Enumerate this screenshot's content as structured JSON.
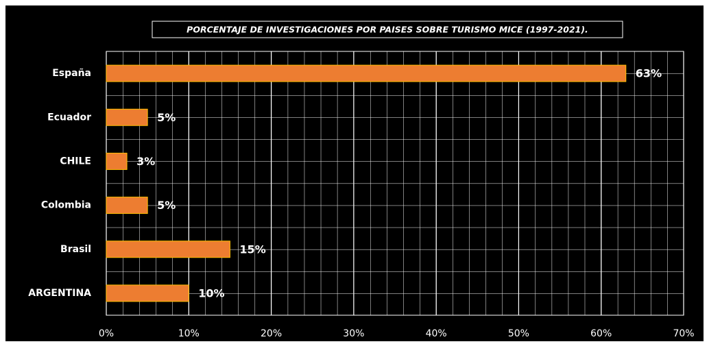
{
  "chart_data": {
    "type": "hbar",
    "title": "PORCENTAJE DE INVESTIGACIONES POR PAISES SOBRE TURISMO MICE (1997-2021).",
    "categories": [
      "España",
      "Ecuador",
      "CHILE",
      "Colombia",
      "Brasil",
      "ARGENTINA"
    ],
    "values": [
      63,
      5,
      2.5,
      5,
      15,
      10
    ],
    "value_labels": [
      "63%",
      "5%",
      "3%",
      "5%",
      "15%",
      "10%"
    ],
    "color": "#ed7d31",
    "xlim": [
      0,
      70
    ],
    "xticks": [
      {
        "value": 0,
        "label": "0%"
      },
      {
        "value": 10,
        "label": "10%"
      },
      {
        "value": 20,
        "label": "20%"
      },
      {
        "value": 30,
        "label": "30%"
      },
      {
        "value": 40,
        "label": "40%"
      },
      {
        "value": 50,
        "label": "50%"
      },
      {
        "value": 60,
        "label": "60%"
      },
      {
        "value": 70,
        "label": "70%"
      }
    ],
    "grid": true
  }
}
